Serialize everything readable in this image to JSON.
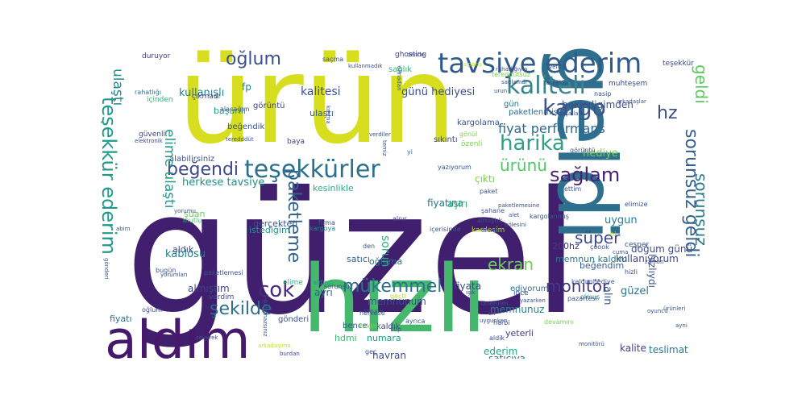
{
  "words": [
    {
      "text": "güzel",
      "color": "#3f1f6e"
    },
    {
      "text": "ürün",
      "color": "#d7de1d"
    },
    {
      "text": "hızlı",
      "color": "#45b86e"
    },
    {
      "text": "geldi",
      "color": "#2e6f8e"
    },
    {
      "text": "aldım",
      "color": "#46196a"
    },
    {
      "text": "tavsiye ederim",
      "color": "#2f5a8a"
    },
    {
      "text": "teşekkürler",
      "color": "#2b718e"
    },
    {
      "text": "kaliteli",
      "color": "#38868c"
    },
    {
      "text": "kargo",
      "color": "#3a548c"
    },
    {
      "text": "harika",
      "color": "#2fa083"
    },
    {
      "text": "sağlam",
      "color": "#482173"
    },
    {
      "text": "beğendi",
      "color": "#3e4a89"
    },
    {
      "text": "teşekkür ederim",
      "color": "#1f9a8a"
    },
    {
      "text": "oğlum",
      "color": "#3b5289"
    },
    {
      "text": "paketleme",
      "color": "#33628d"
    },
    {
      "text": "ekran",
      "color": "#6ece58"
    },
    {
      "text": "mükemmel",
      "color": "#2c728e"
    },
    {
      "text": "süper",
      "color": "#3e4989"
    },
    {
      "text": "monitör",
      "color": "#443983"
    },
    {
      "text": "çok",
      "color": "#472c7a"
    },
    {
      "text": "şekilde",
      "color": "#2d6e8e"
    },
    {
      "text": "sorunsuz",
      "color": "#2a788e"
    },
    {
      "text": "hz",
      "color": "#3d4d8a"
    },
    {
      "text": "ürünü",
      "color": "#54c568"
    },
    {
      "text": "geldi",
      "color": "#5ec962"
    },
    {
      "text": "sorunsuz geldi",
      "color": "#35608d"
    },
    {
      "text": "fiyat performans",
      "color": "#31688e"
    },
    {
      "text": "kullanışlı",
      "color": "#26828e"
    },
    {
      "text": "kalitesi",
      "color": "#3c4f8a"
    },
    {
      "text": "ulaştı",
      "color": "#228c8d"
    },
    {
      "text": "elime ulaştı",
      "color": "#1f988b"
    },
    {
      "text": "başarılı",
      "color": "#20a486"
    },
    {
      "text": "hediye",
      "color": "#7ad151"
    },
    {
      "text": "bekledigimden",
      "color": "#3b528b"
    },
    {
      "text": "günü hediyesi",
      "color": "#3d4e8a"
    },
    {
      "text": "uygun",
      "color": "#297b8e"
    },
    {
      "text": "kablosu",
      "color": "#27808e"
    },
    {
      "text": "herkese tavsiye",
      "color": "#21908d"
    },
    {
      "text": "kullanıyorum",
      "color": "#404688"
    },
    {
      "text": "doğum günü",
      "color": "#3e4a89"
    },
    {
      "text": "fiyatına",
      "color": "#2a768e"
    },
    {
      "text": "satıcı",
      "color": "#355f8d"
    },
    {
      "text": "memnun kaldım",
      "color": "#2b748e"
    },
    {
      "text": "memnunum",
      "color": "#3b518b"
    },
    {
      "text": "memnunuz",
      "color": "#25838e"
    },
    {
      "text": "ederim",
      "color": "#22a785"
    },
    {
      "text": "satıcıya",
      "color": "#2c718e"
    },
    {
      "text": "alın",
      "color": "#3a538b"
    },
    {
      "text": "kalite",
      "color": "#433e85"
    },
    {
      "text": "teslimat",
      "color": "#29798e"
    },
    {
      "text": "fiyatı",
      "color": "#2c728e"
    },
    {
      "text": "numara",
      "color": "#1fa088"
    },
    {
      "text": "yeterli",
      "color": "#424086"
    },
    {
      "text": "fiyata",
      "color": "#3f4788"
    },
    {
      "text": "güzel",
      "color": "#2a778e"
    },
    {
      "text": "hızlıydı",
      "color": "#38598c"
    },
    {
      "text": "beğendim",
      "color": "#365c8d"
    },
    {
      "text": "almıştım",
      "color": "#414287"
    },
    {
      "text": "200hz",
      "color": "#453882"
    },
    {
      "text": "kesinlikle",
      "color": "#27ad81"
    },
    {
      "text": "aşırı",
      "color": "#2eb37c"
    },
    {
      "text": "çıktı",
      "color": "#7ad151"
    },
    {
      "text": "aldık",
      "color": "#3f4889"
    },
    {
      "text": "ayrı",
      "color": "#32658e"
    },
    {
      "text": "hdmi",
      "color": "#40bd72"
    },
    {
      "text": "hayran",
      "color": "#3e4c8a"
    },
    {
      "text": "kaldık",
      "color": "#3e4989"
    },
    {
      "text": "bence",
      "color": "#375a8c"
    },
    {
      "text": "gönderi",
      "color": "#3b528b"
    },
    {
      "text": "oğluma",
      "color": "#2c738e"
    },
    {
      "text": "sorun",
      "color": "#2ab07f"
    },
    {
      "text": "şuan",
      "color": "#67cc5c"
    },
    {
      "text": "gerçekten",
      "color": "#3a538b"
    },
    {
      "text": "istediğim",
      "color": "#1f958b"
    },
    {
      "text": "fp",
      "color": "#24868e"
    },
    {
      "text": "görüntü",
      "color": "#414487"
    },
    {
      "text": "çıkmadı",
      "color": "#3f4788"
    },
    {
      "text": "beğendik",
      "color": "#3b528b"
    },
    {
      "text": "ulaştı",
      "color": "#355e8d"
    },
    {
      "text": "gün",
      "color": "#2d708e"
    },
    {
      "text": "paketlenmişti",
      "color": "#31688e"
    },
    {
      "text": "kargolama",
      "color": "#3b528b"
    },
    {
      "text": "sıkıntı",
      "color": "#3f4889"
    },
    {
      "text": "teşekkür",
      "color": "#3e4a89"
    },
    {
      "text": "sağlık",
      "color": "#35b779"
    },
    {
      "text": "ghosting",
      "color": "#414487"
    },
    {
      "text": "duruyor",
      "color": "#414487"
    },
    {
      "text": "rahatlığı",
      "color": "#2a768e"
    },
    {
      "text": "alabilirsiniz",
      "color": "#3b528b"
    },
    {
      "text": "güvenli",
      "color": "#404588"
    },
    {
      "text": "elektronik",
      "color": "#3e4a89"
    },
    {
      "text": "içinden",
      "color": "#2fb47c"
    },
    {
      "text": "alacağım",
      "color": "#3b528b"
    },
    {
      "text": "baya",
      "color": "#404688"
    },
    {
      "text": "firma",
      "color": "#3b528b"
    },
    {
      "text": "kargoya",
      "color": "#26828e"
    },
    {
      "text": "mutlu",
      "color": "#4ac16d"
    },
    {
      "text": "bugün",
      "color": "#3b528b"
    },
    {
      "text": "paketlemesi",
      "color": "#3b528b"
    },
    {
      "text": "sorunsuz",
      "color": "#3e4a89"
    },
    {
      "text": "aldırın",
      "color": "#1fa088"
    },
    {
      "text": "verdim",
      "color": "#3e4a89"
    },
    {
      "text": "elime",
      "color": "#2db27d"
    },
    {
      "text": "olmuş",
      "color": "#26818e"
    },
    {
      "text": "cesper",
      "color": "#3b528b"
    },
    {
      "text": "muhteşem",
      "color": "#3e4a89"
    },
    {
      "text": "nasip",
      "color": "#3b528b"
    },
    {
      "text": "arkadaşlar",
      "color": "#3b528b"
    },
    {
      "text": "ediyorum",
      "color": "#2e6e8e"
    },
    {
      "text": "kardeşim",
      "color": "#bddf26"
    },
    {
      "text": "özenli",
      "color": "#7ad151"
    },
    {
      "text": "paket",
      "color": "#3b528b"
    },
    {
      "text": "teşekkür",
      "color": "#404688"
    },
    {
      "text": "bi",
      "color": "#bddf26"
    },
    {
      "text": "gönül",
      "color": "#7ad151"
    },
    {
      "text": "yi",
      "color": "#2c718e"
    },
    {
      "text": "ince",
      "color": "#3b528b"
    },
    {
      "text": "devamını",
      "color": "#7ad151"
    },
    {
      "text": "herkese",
      "color": "#3b528b"
    },
    {
      "text": "geçti",
      "color": "#bddf26"
    },
    {
      "text": "burdan",
      "color": "#3e4a89"
    },
    {
      "text": "oğlum",
      "color": "#3e4a89"
    },
    {
      "text": "tereddütsüz",
      "color": "#7ad151"
    },
    {
      "text": "sağlamdı",
      "color": "#3b528b"
    },
    {
      "text": "temiz",
      "color": "#3b528b"
    },
    {
      "text": "saçma",
      "color": "#3b528b"
    },
    {
      "text": "sipariş",
      "color": "#bddf26"
    },
    {
      "text": "kaldım",
      "color": "#7ad151"
    },
    {
      "text": "aldik",
      "color": "#3e4a89"
    },
    {
      "text": "harbi",
      "color": "#3e4a89"
    },
    {
      "text": "ayrıca",
      "color": "#3b528b"
    },
    {
      "text": "top",
      "color": "#3b528b"
    },
    {
      "text": "den",
      "color": "#3b528b"
    },
    {
      "text": "alnır",
      "color": "#3e4a89"
    },
    {
      "text": "içerisinde",
      "color": "#3b528b"
    },
    {
      "text": "öneririm",
      "color": "#3b528b"
    },
    {
      "text": "geç",
      "color": "#3b528b"
    },
    {
      "text": "oyuncu",
      "color": "#3b528b"
    },
    {
      "text": "ürünleri",
      "color": "#3b528b"
    },
    {
      "text": "ayni",
      "color": "#3b528b"
    },
    {
      "text": "cuma",
      "color": "#3b528b"
    },
    {
      "text": "zaman",
      "color": "#3b528b"
    },
    {
      "text": "abim",
      "color": "#3b528b"
    },
    {
      "text": "yorumları",
      "color": "#3b528b"
    },
    {
      "text": "yorumu",
      "color": "#3b528b"
    },
    {
      "text": "kaldımhediye",
      "color": "#3b528b"
    },
    {
      "text": "teredddüt",
      "color": "#3b528b"
    },
    {
      "text": "kızıma",
      "color": "#3b528b"
    },
    {
      "text": "şahane",
      "color": "#3b528b"
    },
    {
      "text": "ettim",
      "color": "#3b528b"
    },
    {
      "text": "elimize",
      "color": "#3b528b"
    },
    {
      "text": "hizli",
      "color": "#3b528b"
    },
    {
      "text": "görüntü",
      "color": "#3b528b"
    },
    {
      "text": "pazartesi",
      "color": "#3b528b"
    },
    {
      "text": "yazıyorum",
      "color": "#3b528b"
    },
    {
      "text": "inşallah",
      "color": "#3b528b"
    },
    {
      "text": "çoook",
      "color": "#3b528b"
    },
    {
      "text": "kargolanmış",
      "color": "#3b528b"
    },
    {
      "text": "almıştık",
      "color": "#3b528b"
    },
    {
      "text": "sorunu",
      "color": "#3b528b"
    },
    {
      "text": "severek",
      "color": "#3b528b"
    },
    {
      "text": "arkadaşıma",
      "color": "#bddf26"
    },
    {
      "text": "bulamazsınız",
      "color": "#3b528b"
    },
    {
      "text": "kullanmadık",
      "color": "#3b528b"
    },
    {
      "text": "rahatlığıyla",
      "color": "#3b528b"
    },
    {
      "text": "olmadan",
      "color": "#3b528b"
    },
    {
      "text": "verdiler",
      "color": "#3b528b"
    },
    {
      "text": "gönderi",
      "color": "#3b528b"
    },
    {
      "text": "bölesini",
      "color": "#3b528b"
    },
    {
      "text": "ürünler",
      "color": "#3b528b"
    },
    {
      "text": "monitörü",
      "color": "#3b528b"
    },
    {
      "text": "uygunken",
      "color": "#3b528b"
    },
    {
      "text": "ışık",
      "color": "#3b528b"
    },
    {
      "text": "alet",
      "color": "#3b528b"
    },
    {
      "text": "paketlemesine",
      "color": "#3b528b"
    },
    {
      "text": "bir",
      "color": "#3b528b"
    },
    {
      "text": "urun",
      "color": "#3b528b"
    },
    {
      "text": "verdik",
      "color": "#3b528b"
    },
    {
      "text": "yazarken",
      "color": "#3b528b"
    },
    {
      "text": "dende",
      "color": "#3b528b"
    },
    {
      "text": "gun",
      "color": "#3b528b"
    },
    {
      "text": "kullanası",
      "color": "#3b528b"
    },
    {
      "text": "değişik",
      "color": "#3b528b"
    },
    {
      "text": "bakmadım",
      "color": "#3b528b"
    },
    {
      "text": "deriz",
      "color": "#3b528b"
    },
    {
      "text": "gelmeden",
      "color": "#3b528b"
    },
    {
      "text": "içinde",
      "color": "#3b528b"
    },
    {
      "text": "ürünle",
      "color": "#3b528b"
    },
    {
      "text": "alan",
      "color": "#3b528b"
    }
  ]
}
